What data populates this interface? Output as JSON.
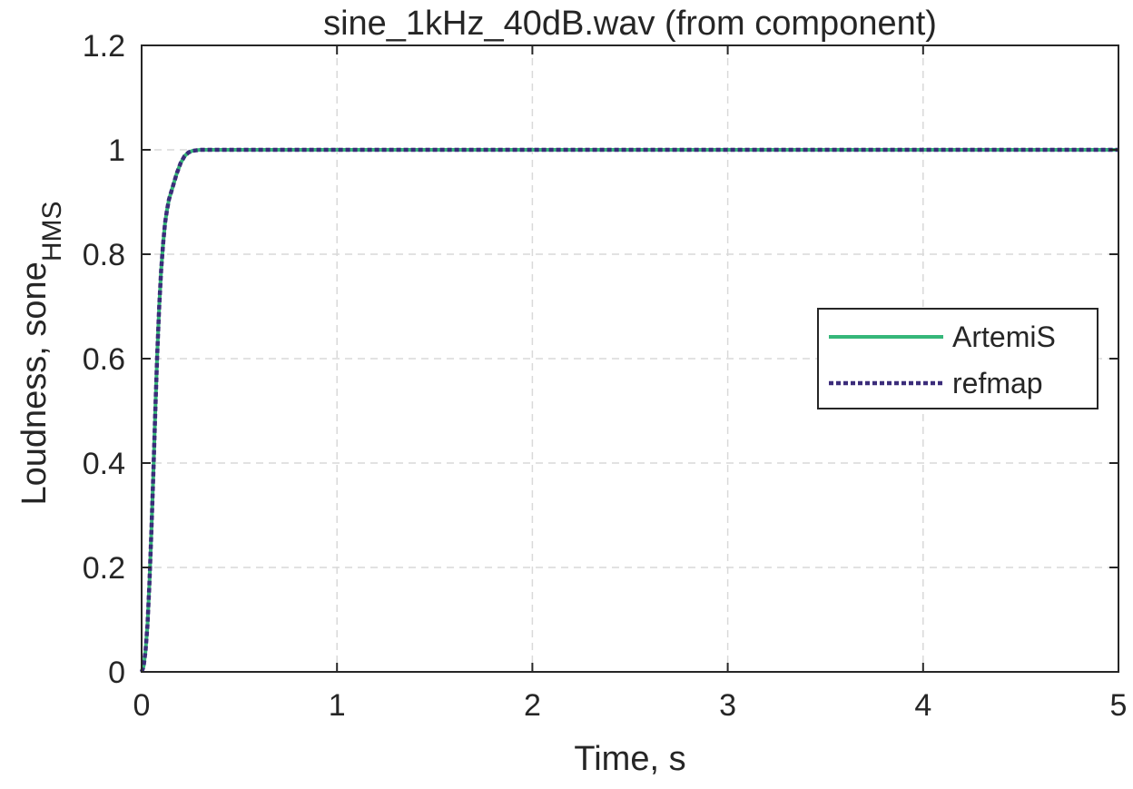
{
  "chart_data": {
    "type": "line",
    "title": "sine_1kHz_40dB.wav (from component)",
    "xlabel": "Time, s",
    "ylabel": {
      "main": "Loudness, sone",
      "subscript": "HMS"
    },
    "xlim": [
      0,
      5
    ],
    "ylim": [
      0,
      1.2
    ],
    "xticks": [
      0,
      1,
      2,
      3,
      4,
      5
    ],
    "xtick_labels": [
      "0",
      "1",
      "2",
      "3",
      "4",
      "5"
    ],
    "yticks": [
      0,
      0.2,
      0.4,
      0.6,
      0.8,
      1,
      1.2
    ],
    "ytick_labels": [
      "0",
      "0.2",
      "0.4",
      "0.6",
      "0.8",
      "1",
      "1.2"
    ],
    "grid": true,
    "legend_position": "right",
    "series": [
      {
        "name": "ArtemiS",
        "color": "#35B779",
        "style": "solid",
        "x": [
          0,
          0.01,
          0.02,
          0.03,
          0.04,
          0.05,
          0.06,
          0.07,
          0.08,
          0.09,
          0.1,
          0.11,
          0.12,
          0.13,
          0.14,
          0.16,
          0.18,
          0.2,
          0.22,
          0.24,
          0.26,
          0.28,
          0.3,
          0.35,
          0.4,
          0.5,
          1,
          2,
          3,
          4,
          5
        ],
        "y": [
          0,
          0.01,
          0.04,
          0.09,
          0.17,
          0.27,
          0.38,
          0.5,
          0.61,
          0.7,
          0.77,
          0.82,
          0.86,
          0.885,
          0.905,
          0.93,
          0.955,
          0.975,
          0.988,
          0.995,
          0.998,
          0.999,
          1.0,
          1.0,
          1.0,
          1.0,
          1.0,
          1.0,
          1.0,
          1.0,
          1.0
        ]
      },
      {
        "name": "refmap",
        "color": "#3B2C7A",
        "style": "dotted",
        "x": [
          0,
          0.01,
          0.02,
          0.03,
          0.04,
          0.05,
          0.06,
          0.07,
          0.08,
          0.09,
          0.1,
          0.11,
          0.12,
          0.13,
          0.14,
          0.16,
          0.18,
          0.2,
          0.22,
          0.24,
          0.26,
          0.28,
          0.3,
          0.35,
          0.4,
          0.5,
          1,
          2,
          3,
          4,
          5
        ],
        "y": [
          0,
          0.01,
          0.04,
          0.09,
          0.17,
          0.27,
          0.38,
          0.5,
          0.61,
          0.7,
          0.77,
          0.82,
          0.86,
          0.885,
          0.905,
          0.93,
          0.955,
          0.975,
          0.988,
          0.995,
          0.998,
          0.999,
          1.0,
          1.0,
          1.0,
          1.0,
          1.0,
          1.0,
          1.0,
          1.0,
          1.0
        ]
      }
    ]
  }
}
